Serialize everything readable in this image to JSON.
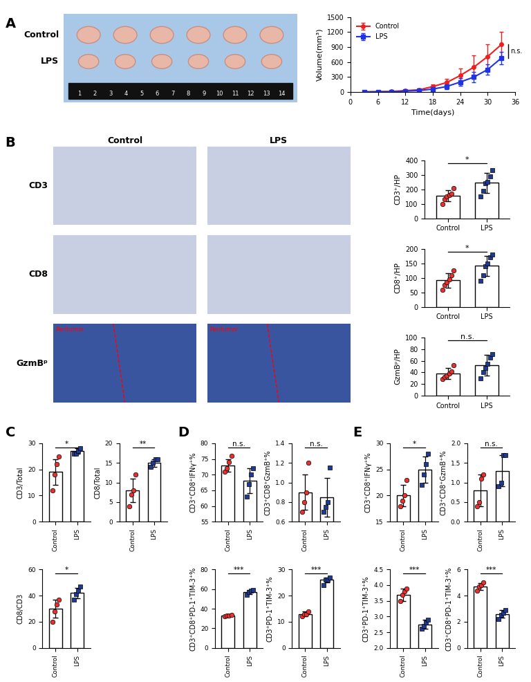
{
  "panel_labels": [
    "A",
    "B",
    "C",
    "D",
    "E"
  ],
  "photo": {
    "rows": [
      "Control",
      "LPS"
    ],
    "ruler": [
      1,
      2,
      3,
      4,
      5,
      6,
      7,
      8,
      9,
      10,
      11,
      12,
      13,
      14
    ]
  },
  "ihc": {
    "columns": [
      "Control",
      "LPS"
    ],
    "rows": [
      "CD3",
      "CD8",
      "GzmBᵖ"
    ],
    "annotation": "Peritumor"
  },
  "chart_data": [
    {
      "type": "line",
      "xlabel": "Time(days)",
      "ylabel": "Volume(mm³)",
      "x": [
        3,
        6,
        9,
        12,
        15,
        18,
        21,
        24,
        27,
        30,
        33
      ],
      "series": [
        {
          "name": "Control",
          "color": "#f01e1e",
          "marker": "circle",
          "values": [
            5,
            8,
            12,
            30,
            45,
            110,
            190,
            330,
            500,
            710,
            950
          ],
          "error": [
            3,
            5,
            6,
            15,
            20,
            50,
            80,
            140,
            230,
            250,
            250
          ]
        },
        {
          "name": "LPS",
          "color": "#1e32e6",
          "marker": "square",
          "values": [
            3,
            6,
            8,
            18,
            30,
            60,
            110,
            200,
            300,
            450,
            680
          ],
          "error": [
            2,
            4,
            5,
            10,
            15,
            30,
            50,
            80,
            100,
            100,
            120
          ]
        }
      ],
      "xlim": [
        0,
        36
      ],
      "xticks": [
        0,
        6,
        12,
        18,
        24,
        30,
        36
      ],
      "ylim": [
        0,
        1500
      ],
      "yticks": [
        0,
        300,
        600,
        900,
        1200,
        1500
      ],
      "legend": "upper left",
      "annotation": "n.s."
    },
    {
      "type": "bar",
      "ylabel": "CD3⁺/HP",
      "categories": [
        "Control",
        "LPS"
      ],
      "values": [
        155,
        245
      ],
      "error": [
        40,
        70
      ],
      "points": [
        [
          100,
          130,
          150,
          160,
          170,
          210
        ],
        [
          150,
          190,
          240,
          250,
          290,
          330
        ]
      ],
      "colors": [
        "#e8312f",
        "#1f3a93"
      ],
      "ylim": [
        0,
        400
      ],
      "yticks": [
        0,
        100,
        200,
        300,
        400
      ],
      "annotation": "*"
    },
    {
      "type": "bar",
      "ylabel": "CD8⁺/HP",
      "categories": [
        "Control",
        "LPS"
      ],
      "values": [
        92,
        142
      ],
      "error": [
        25,
        35
      ],
      "points": [
        [
          60,
          75,
          85,
          95,
          110,
          125
        ],
        [
          90,
          110,
          140,
          150,
          170,
          180
        ]
      ],
      "colors": [
        "#e8312f",
        "#1f3a93"
      ],
      "ylim": [
        0,
        200
      ],
      "yticks": [
        0,
        50,
        100,
        150,
        200
      ],
      "annotation": "*"
    },
    {
      "type": "bar",
      "ylabel": "GzmBᵖ/HP",
      "categories": [
        "Control",
        "LPS"
      ],
      "values": [
        38,
        52
      ],
      "error": [
        10,
        18
      ],
      "points": [
        [
          28,
          32,
          35,
          38,
          42,
          52
        ],
        [
          30,
          40,
          48,
          55,
          65,
          72
        ]
      ],
      "colors": [
        "#e8312f",
        "#1f3a93"
      ],
      "ylim": [
        0,
        100
      ],
      "yticks": [
        0,
        20,
        40,
        60,
        80,
        100
      ],
      "annotation": "n.s."
    },
    {
      "type": "bar",
      "ylabel": "CD3/Total",
      "categories": [
        "Control",
        "LPS"
      ],
      "values": [
        19,
        27
      ],
      "error": [
        5,
        1
      ],
      "points": [
        [
          12,
          18,
          22,
          25
        ],
        [
          26,
          26,
          27,
          28
        ]
      ],
      "colors": [
        "#e8312f",
        "#1f3a93"
      ],
      "ylim": [
        0,
        30
      ],
      "yticks": [
        0,
        10,
        20,
        30
      ],
      "annotation": "*"
    },
    {
      "type": "bar",
      "ylabel": "CD8/Total",
      "categories": [
        "Control",
        "LPS"
      ],
      "values": [
        8,
        15
      ],
      "error": [
        3,
        1
      ],
      "points": [
        [
          4,
          7,
          8,
          12
        ],
        [
          14,
          15,
          16,
          16
        ]
      ],
      "colors": [
        "#e8312f",
        "#1f3a93"
      ],
      "ylim": [
        0,
        20
      ],
      "yticks": [
        0,
        5,
        10,
        15,
        20
      ],
      "annotation": "**"
    },
    {
      "type": "bar",
      "ylabel": "CD8/CD3",
      "categories": [
        "Control",
        "LPS"
      ],
      "values": [
        30,
        42
      ],
      "error": [
        7,
        4
      ],
      "points": [
        [
          20,
          28,
          33,
          37
        ],
        [
          37,
          41,
          44,
          47
        ]
      ],
      "colors": [
        "#e8312f",
        "#1f3a93"
      ],
      "ylim": [
        0,
        60
      ],
      "yticks": [
        0,
        20,
        40,
        60
      ],
      "annotation": "*"
    },
    {
      "type": "bar",
      "ylabel": "CD3⁺CD8⁺IFNγ⁺%",
      "categories": [
        "Control",
        "LPS"
      ],
      "values": [
        73,
        68
      ],
      "error": [
        2,
        4
      ],
      "points": [
        [
          71,
          72,
          74,
          76
        ],
        [
          63,
          67,
          70,
          72
        ]
      ],
      "colors": [
        "#e8312f",
        "#1f3a93"
      ],
      "ylim": [
        55,
        80
      ],
      "yticks": [
        55,
        60,
        65,
        70,
        75,
        80
      ],
      "annotation": "n.s."
    },
    {
      "type": "bar",
      "ylabel": "CD3⁺CD8⁺GzmB⁺%",
      "categories": [
        "Control",
        "LPS"
      ],
      "values": [
        0.9,
        0.85
      ],
      "error": [
        0.18,
        0.2
      ],
      "points": [
        [
          0.7,
          0.8,
          0.9,
          1.2
        ],
        [
          0.7,
          0.75,
          0.8,
          1.15
        ]
      ],
      "colors": [
        "#e8312f",
        "#1f3a93"
      ],
      "ylim": [
        0.6,
        1.4
      ],
      "yticks": [
        0.6,
        0.8,
        1.0,
        1.2,
        1.4
      ],
      "annotation": "n.s."
    },
    {
      "type": "bar",
      "ylabel": "CD3⁺CD8⁺PD-1⁺TIM-3⁺%",
      "categories": [
        "Control",
        "LPS"
      ],
      "values": [
        33,
        57
      ],
      "error": [
        1,
        2
      ],
      "points": [
        [
          32,
          33,
          33,
          34
        ],
        [
          54,
          57,
          58,
          59
        ]
      ],
      "colors": [
        "#e8312f",
        "#1f3a93"
      ],
      "ylim": [
        0,
        80
      ],
      "yticks": [
        0,
        20,
        40,
        60,
        80
      ],
      "annotation": "***"
    },
    {
      "type": "bar",
      "ylabel": "CD3⁺PD-1⁺TIM-3⁺%",
      "categories": [
        "Control",
        "LPS"
      ],
      "values": [
        13,
        26
      ],
      "error": [
        1,
        1
      ],
      "points": [
        [
          12,
          13,
          13,
          14
        ],
        [
          24,
          26,
          26,
          27
        ]
      ],
      "colors": [
        "#e8312f",
        "#1f3a93"
      ],
      "ylim": [
        0,
        30
      ],
      "yticks": [
        0,
        10,
        20,
        30
      ],
      "annotation": "***"
    },
    {
      "type": "bar",
      "ylabel": "CD3⁺CD8⁺IFNγ⁺%",
      "categories": [
        "Control",
        "LPS"
      ],
      "values": [
        20,
        25
      ],
      "error": [
        2,
        2.5
      ],
      "points": [
        [
          18,
          19,
          20,
          23
        ],
        [
          22,
          24,
          26,
          28
        ]
      ],
      "colors": [
        "#e8312f",
        "#1f3a93"
      ],
      "ylim": [
        15,
        30
      ],
      "yticks": [
        15,
        20,
        25,
        30
      ],
      "annotation": "*"
    },
    {
      "type": "bar",
      "ylabel": "CD3⁺CD8⁺GzmB⁺%",
      "categories": [
        "Control",
        "LPS"
      ],
      "values": [
        0.8,
        1.3
      ],
      "error": [
        0.4,
        0.4
      ],
      "points": [
        [
          0.4,
          0.5,
          1.1,
          1.2
        ],
        [
          0.9,
          1.0,
          1.7,
          1.7
        ]
      ],
      "colors": [
        "#e8312f",
        "#1f3a93"
      ],
      "ylim": [
        0.0,
        2.0
      ],
      "yticks": [
        0.0,
        0.5,
        1.0,
        1.5,
        2.0
      ],
      "annotation": "n.s."
    },
    {
      "type": "bar",
      "ylabel": "CD3⁺PD-1⁺TIM-3⁺%",
      "categories": [
        "Control",
        "LPS"
      ],
      "values": [
        3.7,
        2.75
      ],
      "error": [
        0.2,
        0.15
      ],
      "points": [
        [
          3.5,
          3.7,
          3.8,
          3.9
        ],
        [
          2.6,
          2.7,
          2.8,
          2.9
        ]
      ],
      "colors": [
        "#e8312f",
        "#1f3a93"
      ],
      "ylim": [
        2.0,
        4.5
      ],
      "yticks": [
        2.0,
        2.5,
        3.0,
        3.5,
        4.0,
        4.5
      ],
      "annotation": "***"
    },
    {
      "type": "bar",
      "ylabel": "CD3⁺CD8⁺PD-1⁺TIM-3⁺%",
      "categories": [
        "Control",
        "LPS"
      ],
      "values": [
        4.7,
        2.6
      ],
      "error": [
        0.25,
        0.3
      ],
      "points": [
        [
          4.4,
          4.7,
          4.8,
          5.0
        ],
        [
          2.2,
          2.5,
          2.7,
          2.9
        ]
      ],
      "colors": [
        "#e8312f",
        "#1f3a93"
      ],
      "ylim": [
        0,
        6
      ],
      "yticks": [
        0,
        2,
        4,
        6
      ],
      "annotation": "***"
    }
  ]
}
